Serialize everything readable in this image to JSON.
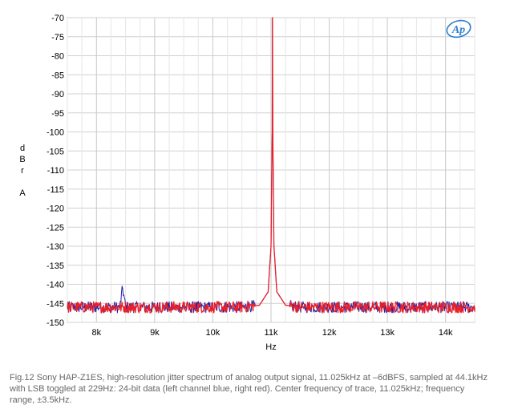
{
  "chart_data": {
    "type": "line",
    "title": "",
    "xlabel": "Hz",
    "ylabel_lines": [
      "d",
      "B",
      "r",
      "",
      "A"
    ],
    "xlim": [
      7500,
      14500
    ],
    "ylim": [
      -150,
      -70
    ],
    "x_ticks": [
      8000,
      9000,
      10000,
      11000,
      12000,
      13000,
      14000
    ],
    "x_tick_labels": [
      "8k",
      "9k",
      "10k",
      "11k",
      "12k",
      "13k",
      "14k"
    ],
    "y_ticks": [
      -70,
      -75,
      -80,
      -85,
      -90,
      -95,
      -100,
      -105,
      -110,
      -115,
      -120,
      -125,
      -130,
      -135,
      -140,
      -145,
      -150
    ],
    "y_tick_labels": [
      "-70",
      "-75",
      "-80",
      "-85",
      "-90",
      "-95",
      "-100",
      "-105",
      "-110",
      "-115",
      "-120",
      "-125",
      "-130",
      "-135",
      "-140",
      "-145",
      "-150"
    ],
    "grid": true,
    "center_frequency_hz": 11025,
    "peak_level_dbr": -70,
    "noise_floor_dbr": -146,
    "series": [
      {
        "color": "#1f1fa8",
        "x": [
          7500,
          8000,
          8400,
          8450,
          8500,
          9000,
          9500,
          10000,
          10500,
          10800,
          10950,
          11000,
          11020,
          11025,
          11030,
          11050,
          11100,
          11250,
          11500,
          12000,
          12500,
          13000,
          13500,
          14000,
          14500
        ],
        "y": [
          -146,
          -146,
          -146,
          -141,
          -146,
          -146,
          -146,
          -146,
          -146,
          -145.5,
          -142,
          -130,
          -100,
          -70,
          -100,
          -130,
          -142,
          -145.5,
          -146,
          -146,
          -146,
          -146,
          -146,
          -146,
          -146
        ]
      },
      {
        "color": "#e8202a",
        "x": [
          7500,
          8000,
          8500,
          9000,
          9500,
          10000,
          10500,
          10800,
          10950,
          11000,
          11020,
          11025,
          11030,
          11050,
          11100,
          11250,
          11500,
          12000,
          12500,
          13000,
          13500,
          14000,
          14500
        ],
        "y": [
          -146,
          -146,
          -146,
          -146,
          -146,
          -146,
          -146,
          -145.5,
          -142,
          -130,
          -100,
          -70,
          -100,
          -130,
          -142,
          -145.5,
          -146,
          -146,
          -146,
          -146,
          -146,
          -146,
          -146
        ]
      }
    ]
  },
  "logo_text": "Ap",
  "caption": "Fig.12 Sony HAP-Z1ES, high-resolution jitter spectrum of analog output signal, 11.025kHz at –6dBFS, sampled at 44.1kHz with LSB toggled at 229Hz: 24-bit data (left channel blue, right red). Center frequency of trace, 11.025kHz; frequency range, ±3.5kHz."
}
